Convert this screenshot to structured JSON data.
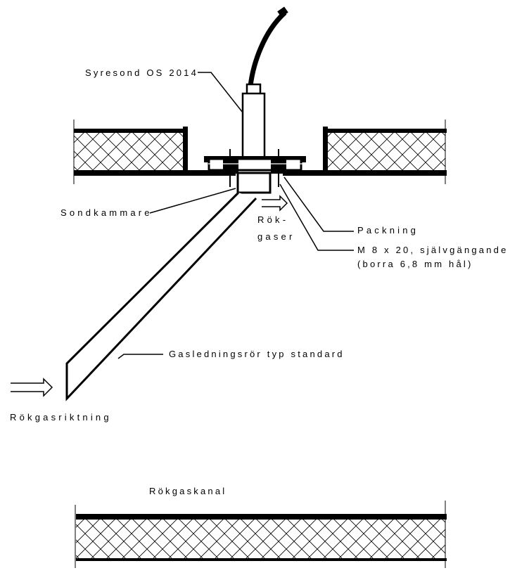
{
  "labels": {
    "probe": "Syresond OS 2014",
    "chamber": "Sondkammare",
    "flue_gases_1": "Rök-",
    "flue_gases_2": "gaser",
    "gasket": "Packning",
    "screw_1": "M 8 x 20, självgängande",
    "screw_2": "(borra 6,8 mm hål)",
    "pipe": "Gasledningsrör typ standard",
    "direction": "Rökgasriktning",
    "duct": "Rökgaskanal"
  },
  "colors": {
    "ink": "#000000",
    "background": "#ffffff"
  }
}
